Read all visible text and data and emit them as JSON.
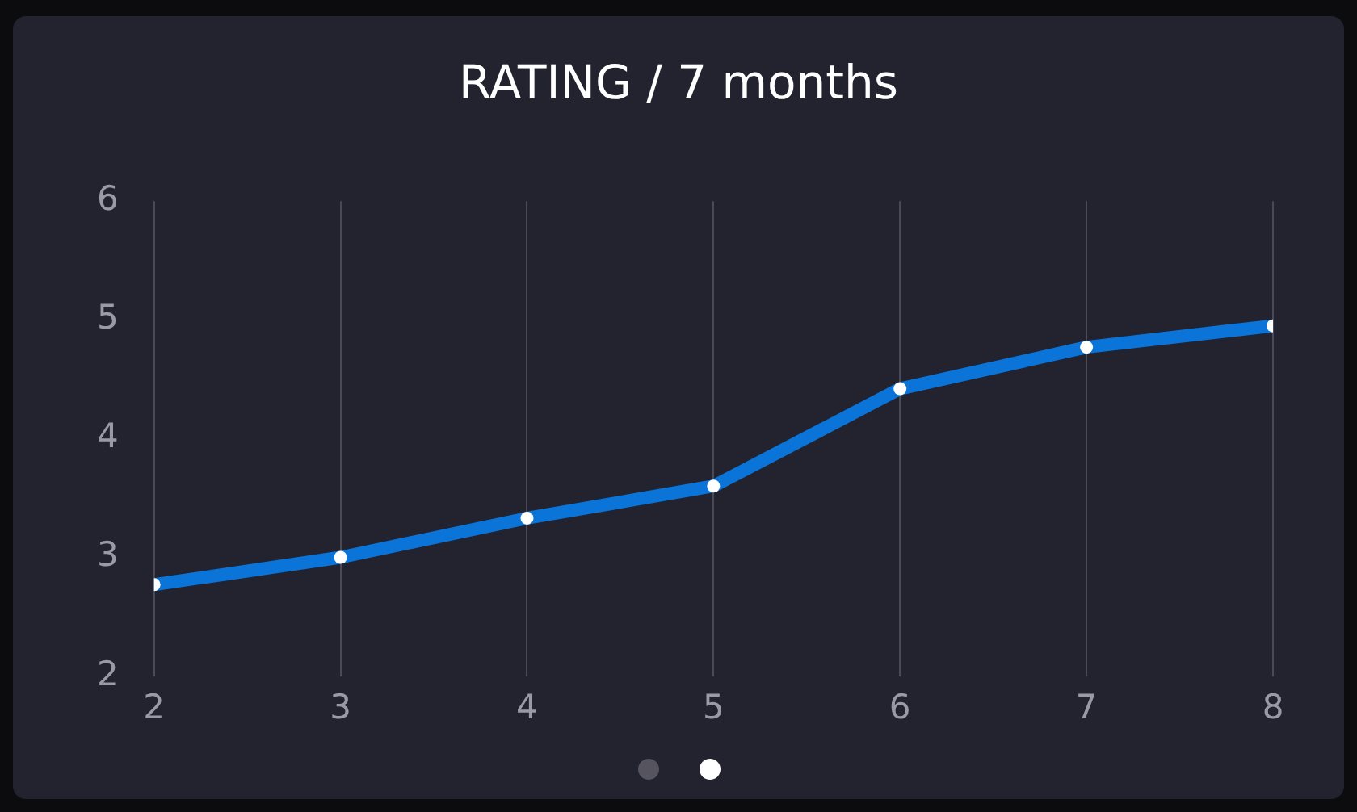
{
  "chart_data": {
    "type": "line",
    "title": "RATING / 7 months",
    "x": [
      2,
      3,
      4,
      5,
      6,
      7,
      8
    ],
    "series": [
      {
        "color": "#0a74d8",
        "values": [
          2.77,
          3.0,
          3.33,
          3.6,
          4.42,
          4.77,
          4.95
        ]
      }
    ],
    "xlim": [
      2,
      8
    ],
    "xticks": [
      2,
      3,
      4,
      5,
      6,
      7,
      8
    ],
    "ylim": [
      2,
      6
    ],
    "yticks": [
      2,
      3,
      4,
      5,
      6
    ],
    "grid": "x",
    "marker": "circle",
    "line_style": "solid",
    "legend": false
  }
}
